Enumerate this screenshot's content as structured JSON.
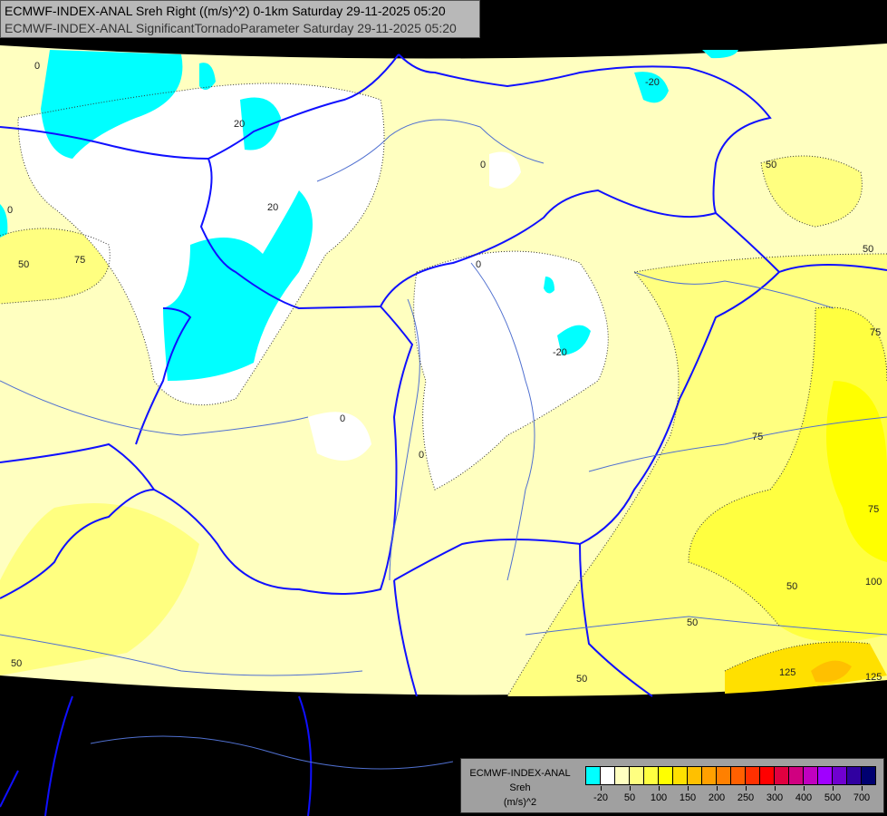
{
  "header": {
    "line1": "ECMWF-INDEX-ANAL Sreh Right ((m/s)^2) 0-1km Saturday 29-11-2025 05:20",
    "line2": "ECMWF-INDEX-ANAL SignificantTornadoParameter Saturday 29-11-2025 05:20"
  },
  "legend": {
    "title_lines": [
      "ECMWF-INDEX-ANAL",
      "Sreh",
      "(m/s)^2"
    ],
    "colors": [
      "#00ffff",
      "#ffffff",
      "#ffffc0",
      "#ffff80",
      "#ffff40",
      "#ffff00",
      "#ffe000",
      "#ffc000",
      "#ffa000",
      "#ff8000",
      "#ff6000",
      "#ff3000",
      "#ff0000",
      "#e00040",
      "#d00080",
      "#c000c0",
      "#a000ff",
      "#7000d0",
      "#3000a0",
      "#000070"
    ],
    "tick_labels": [
      "-20",
      "50",
      "100",
      "150",
      "200",
      "250",
      "300",
      "400",
      "500",
      "700"
    ]
  },
  "map": {
    "contour_labels": [
      "0",
      "20",
      "20",
      "-20",
      "0",
      "50",
      "75",
      "0",
      "0",
      "0",
      "0",
      "50",
      "50",
      "75",
      "75",
      "75",
      "100",
      "50",
      "50",
      "125",
      "125",
      "50",
      "-20",
      "50"
    ]
  }
}
